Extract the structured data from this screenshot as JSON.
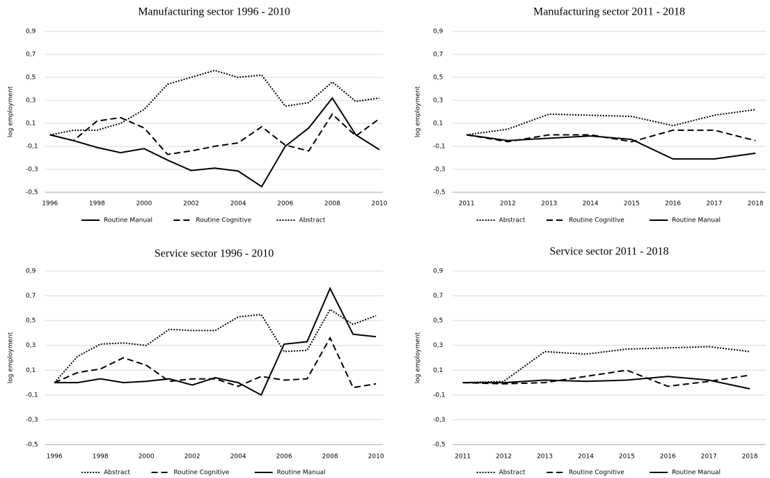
{
  "chart_data": [
    {
      "type": "line",
      "title": "Manufacturing sector 1996 - 2010",
      "y_label": "log employment",
      "x": [
        1996,
        1997,
        1998,
        1999,
        2000,
        2001,
        2002,
        2003,
        2004,
        2005,
        2006,
        2007,
        2008,
        2009,
        2010
      ],
      "xlim": [
        1995.8,
        2010.15
      ],
      "xticks": [
        1996,
        1998,
        2000,
        2002,
        2004,
        2006,
        2008,
        2010
      ],
      "ylim": [
        -0.5,
        0.9
      ],
      "yticks": [
        {
          "value": -0.5,
          "label": "-0,5"
        },
        {
          "value": -0.3,
          "label": "-0,3"
        },
        {
          "value": -0.1,
          "label": "-0,1"
        },
        {
          "value": 0.1,
          "label": "0,1"
        },
        {
          "value": 0.3,
          "label": "0,3"
        },
        {
          "value": 0.5,
          "label": "0,5"
        },
        {
          "value": 0.7,
          "label": "0,7"
        },
        {
          "value": 0.9,
          "label": "0,9"
        }
      ],
      "grid": true,
      "legend": "bottom",
      "series": [
        {
          "name": "Routine Manual",
          "color": "#000000",
          "dash": "solid",
          "values": [
            0,
            -0.05,
            -0.11,
            -0.155,
            -0.12,
            -0.22,
            -0.31,
            -0.29,
            -0.315,
            -0.45,
            -0.1,
            0.06,
            0.32,
            0.0,
            -0.13
          ]
        },
        {
          "name": "Routine Cognitive",
          "color": "#000000",
          "dash": "dashed",
          "values": [
            0,
            -0.05,
            0.12,
            0.15,
            0.06,
            -0.17,
            -0.14,
            -0.1,
            -0.07,
            0.07,
            -0.09,
            -0.14,
            0.18,
            -0.01,
            0.14
          ]
        },
        {
          "name": "Abstract",
          "color": "#000000",
          "dash": "dotted",
          "values": [
            0,
            0.04,
            0.04,
            0.1,
            0.22,
            0.44,
            0.5,
            0.56,
            0.5,
            0.52,
            0.25,
            0.28,
            0.46,
            0.29,
            0.32
          ]
        }
      ]
    },
    {
      "type": "line",
      "title": "Manufacturing sector 2011 - 2018",
      "y_label": "log employment",
      "x": [
        2011,
        2012,
        2013,
        2014,
        2015,
        2016,
        2017,
        2018
      ],
      "xlim": [
        2010.66,
        2018.25
      ],
      "xticks": [
        2011,
        2012,
        2013,
        2014,
        2015,
        2016,
        2017,
        2018
      ],
      "ylim": [
        -0.5,
        0.9
      ],
      "yticks": [
        {
          "value": -0.5,
          "label": "-0,5"
        },
        {
          "value": -0.3,
          "label": "-0,3"
        },
        {
          "value": -0.1,
          "label": "-0,1"
        },
        {
          "value": 0.1,
          "label": "0,1"
        },
        {
          "value": 0.3,
          "label": "0,3"
        },
        {
          "value": 0.5,
          "label": "0,5"
        },
        {
          "value": 0.7,
          "label": "0,7"
        },
        {
          "value": 0.9,
          "label": "0,9"
        }
      ],
      "grid": true,
      "legend": "bottom",
      "series": [
        {
          "name": "Abstract",
          "color": "#000000",
          "dash": "dotted",
          "values": [
            0,
            0.05,
            0.18,
            0.17,
            0.16,
            0.08,
            0.17,
            0.22
          ]
        },
        {
          "name": "Routine Cognitive",
          "color": "#000000",
          "dash": "dashed",
          "values": [
            0,
            -0.06,
            0.0,
            0.0,
            -0.06,
            0.04,
            0.04,
            -0.05
          ]
        },
        {
          "name": "Routine Manual",
          "color": "#000000",
          "dash": "solid",
          "values": [
            0,
            -0.05,
            -0.03,
            -0.01,
            -0.04,
            -0.21,
            -0.21,
            -0.16
          ]
        }
      ]
    },
    {
      "type": "line",
      "title": "Service sector 1996 - 2010",
      "y_label": "log employment",
      "x": [
        1996,
        1997,
        1998,
        1999,
        2000,
        2001,
        2002,
        2003,
        2004,
        2005,
        2006,
        2007,
        2008,
        2009,
        2010
      ],
      "xlim": [
        1995.6,
        2010.3
      ],
      "xticks": [
        1996,
        1998,
        2000,
        2002,
        2004,
        2006,
        2008,
        2010
      ],
      "ylim": [
        -0.5,
        0.9
      ],
      "yticks": [
        {
          "value": -0.5,
          "label": "-0,5"
        },
        {
          "value": -0.3,
          "label": "-0,3"
        },
        {
          "value": -0.1,
          "label": "-0,1"
        },
        {
          "value": 0.1,
          "label": "0,1"
        },
        {
          "value": 0.3,
          "label": "0,3"
        },
        {
          "value": 0.5,
          "label": "0,5"
        },
        {
          "value": 0.7,
          "label": "0,7"
        },
        {
          "value": 0.9,
          "label": "0,9"
        }
      ],
      "grid": true,
      "legend": "bottom",
      "series": [
        {
          "name": "Abstract",
          "color": "#000000",
          "dash": "dotted",
          "values": [
            0,
            0.21,
            0.31,
            0.32,
            0.3,
            0.43,
            0.42,
            0.42,
            0.53,
            0.55,
            0.25,
            0.26,
            0.59,
            0.47,
            0.54
          ]
        },
        {
          "name": "Routine Cognitive",
          "color": "#000000",
          "dash": "dashed",
          "values": [
            0,
            0.08,
            0.11,
            0.2,
            0.14,
            0.01,
            0.03,
            0.03,
            -0.03,
            0.05,
            0.02,
            0.03,
            0.36,
            -0.04,
            -0.01
          ]
        },
        {
          "name": "Routine Manual",
          "color": "#000000",
          "dash": "solid",
          "values": [
            0,
            0,
            0.03,
            0,
            0.01,
            0.03,
            -0.02,
            0.04,
            0,
            -0.1,
            0.31,
            0.33,
            0.76,
            0.39,
            0.37
          ]
        }
      ]
    },
    {
      "type": "line",
      "title": "Service sector 2011 - 2018",
      "y_label": "log employment",
      "x": [
        2011,
        2012,
        2013,
        2014,
        2015,
        2016,
        2017,
        2018
      ],
      "xlim": [
        2010.75,
        2018.39
      ],
      "xticks": [
        2011,
        2012,
        2013,
        2014,
        2015,
        2016,
        2017,
        2018
      ],
      "ylim": [
        -0.5,
        0.9
      ],
      "yticks": [
        {
          "value": -0.5,
          "label": "-0,5"
        },
        {
          "value": -0.3,
          "label": "-0,3"
        },
        {
          "value": -0.1,
          "label": "-0,1"
        },
        {
          "value": 0.1,
          "label": "0,1"
        },
        {
          "value": 0.3,
          "label": "0,3"
        },
        {
          "value": 0.5,
          "label": "0,5"
        },
        {
          "value": 0.7,
          "label": "0,7"
        },
        {
          "value": 0.9,
          "label": "0,9"
        }
      ],
      "grid": true,
      "legend": "bottom",
      "series": [
        {
          "name": "Abstract",
          "color": "#000000",
          "dash": "dotted",
          "values": [
            0,
            0.01,
            0.25,
            0.23,
            0.27,
            0.28,
            0.29,
            0.25
          ]
        },
        {
          "name": "Routine Cognitive",
          "color": "#000000",
          "dash": "dashed",
          "values": [
            0,
            -0.01,
            0.0,
            0.05,
            0.1,
            -0.03,
            0.01,
            0.06
          ]
        },
        {
          "name": "Routine Manual",
          "color": "#000000",
          "dash": "solid",
          "values": [
            0,
            0.0,
            0.02,
            0.01,
            0.02,
            0.05,
            0.02,
            -0.05
          ]
        }
      ]
    }
  ]
}
